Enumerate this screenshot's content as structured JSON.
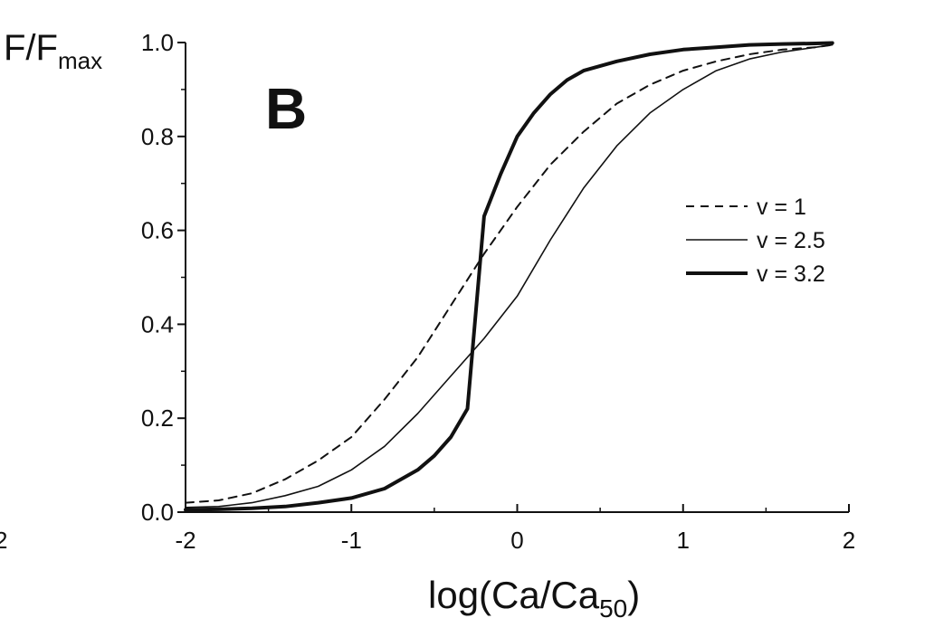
{
  "chart_data": {
    "type": "line",
    "panel_label": "B",
    "xlabel": {
      "main": "log(Ca/Ca",
      "sub": "50",
      "end": ")"
    },
    "ylabel": {
      "main": "F/F",
      "sub": "max"
    },
    "xlim": [
      -2,
      2
    ],
    "ylim": [
      0,
      1
    ],
    "xticks": [
      -2,
      -1,
      0,
      1,
      2
    ],
    "xtick_labels": [
      "-2",
      "-1",
      "0",
      "1",
      "2"
    ],
    "yticks": [
      0,
      0.2,
      0.4,
      0.6,
      0.8,
      1.0
    ],
    "ytick_labels": [
      "0.0",
      "0.2",
      "0.4",
      "0.6",
      "0.8",
      "1.0"
    ],
    "grid": false,
    "legend_position": "right",
    "edge_fragment": "2",
    "series": [
      {
        "name": "v = 1",
        "style": "dashed",
        "color": "#111111",
        "x": [
          -2.0,
          -1.8,
          -1.6,
          -1.4,
          -1.2,
          -1.0,
          -0.8,
          -0.6,
          -0.4,
          -0.2,
          0.0,
          0.2,
          0.4,
          0.6,
          0.8,
          1.0,
          1.2,
          1.4,
          1.6,
          1.8,
          1.9
        ],
        "y": [
          0.02,
          0.025,
          0.04,
          0.07,
          0.11,
          0.16,
          0.24,
          0.33,
          0.44,
          0.55,
          0.65,
          0.74,
          0.81,
          0.87,
          0.91,
          0.94,
          0.96,
          0.975,
          0.985,
          0.99,
          0.995
        ]
      },
      {
        "name": "v = 2.5",
        "style": "solid",
        "color": "#111111",
        "x": [
          -2.0,
          -1.8,
          -1.6,
          -1.4,
          -1.2,
          -1.0,
          -0.8,
          -0.6,
          -0.4,
          -0.2,
          0.0,
          0.2,
          0.4,
          0.6,
          0.8,
          1.0,
          1.2,
          1.4,
          1.6,
          1.8,
          1.9
        ],
        "y": [
          0.01,
          0.012,
          0.02,
          0.035,
          0.055,
          0.09,
          0.14,
          0.21,
          0.29,
          0.37,
          0.46,
          0.58,
          0.69,
          0.78,
          0.85,
          0.9,
          0.94,
          0.965,
          0.98,
          0.99,
          0.995
        ]
      },
      {
        "name": "v = 3.2",
        "style": "thick",
        "color": "#111111",
        "x": [
          -2.0,
          -1.8,
          -1.6,
          -1.4,
          -1.2,
          -1.0,
          -0.8,
          -0.6,
          -0.5,
          -0.4,
          -0.3,
          -0.2,
          -0.1,
          0.0,
          0.1,
          0.2,
          0.3,
          0.4,
          0.6,
          0.8,
          1.0,
          1.2,
          1.4,
          1.6,
          1.8,
          1.9
        ],
        "y": [
          0.005,
          0.006,
          0.008,
          0.012,
          0.02,
          0.03,
          0.05,
          0.09,
          0.12,
          0.16,
          0.22,
          0.63,
          0.72,
          0.8,
          0.85,
          0.89,
          0.92,
          0.94,
          0.96,
          0.975,
          0.985,
          0.99,
          0.995,
          0.997,
          0.998,
          0.999
        ]
      }
    ]
  }
}
